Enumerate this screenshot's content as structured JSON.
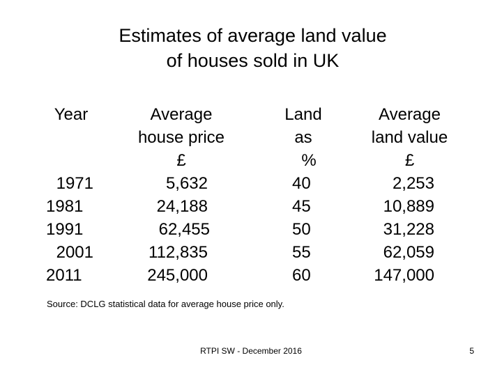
{
  "title": {
    "line1": "Estimates of average land value",
    "line2": "of houses sold in UK"
  },
  "table": {
    "columns": [
      {
        "header": [
          "Year"
        ]
      },
      {
        "header": [
          "Average",
          "house price",
          "£"
        ]
      },
      {
        "header": [
          "Land",
          "as",
          "%"
        ]
      },
      {
        "header": [
          "Average",
          "land value",
          "£"
        ]
      }
    ],
    "rows": [
      {
        "year": "1971",
        "house_price": "5,632",
        "land_pct": "40",
        "land_value": "2,253"
      },
      {
        "year": "1981",
        "house_price": "24,188",
        "land_pct": "45",
        "land_value": "10,889"
      },
      {
        "year": "1991",
        "house_price": "62,455",
        "land_pct": "50",
        "land_value": "31,228"
      },
      {
        "year": "2001",
        "house_price": "112,835",
        "land_pct": "55",
        "land_value": "62,059"
      },
      {
        "year": "2011",
        "house_price": "245,000",
        "land_pct": "60",
        "land_value": "147,000"
      }
    ]
  },
  "source_note": "Source: DCLG statistical data for average house price only.",
  "footer": "RTPI SW - December 2016",
  "page_number": "5"
}
